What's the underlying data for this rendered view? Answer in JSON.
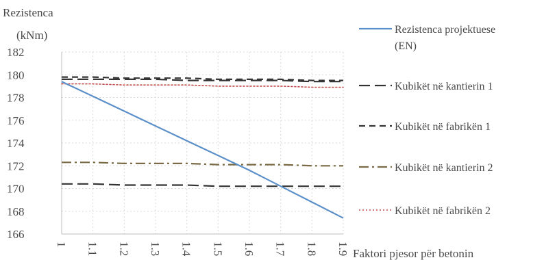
{
  "chart_data": {
    "type": "line",
    "ylabel_line1": "Rezistenca",
    "ylabel_line2": "(kNm)",
    "xlabel": "Faktori pjesor për betonin",
    "x": [
      1,
      1.1,
      1.2,
      1.3,
      1.4,
      1.5,
      1.6,
      1.7,
      1.8,
      1.9
    ],
    "x_tick_labels": [
      "1",
      "1.1",
      "1.2",
      "1.3",
      "1.4",
      "1.5",
      "1.6",
      "1.7",
      "1.8",
      "1.9"
    ],
    "ylim": [
      166,
      182
    ],
    "y_ticks": [
      166,
      168,
      170,
      172,
      174,
      176,
      178,
      180,
      182
    ],
    "grid": true,
    "legend_position": "right",
    "series": [
      {
        "name": "Rezistenca projektuese (EN)",
        "name_lines": [
          "Rezistenca projektuese",
          "(EN)"
        ],
        "style": "solid",
        "color": "#5b8fc9",
        "values": [
          179.4,
          178.1,
          176.8,
          175.5,
          174.2,
          172.9,
          171.6,
          170.2,
          168.8,
          167.4
        ]
      },
      {
        "name": "Kubikët në kantierin 1",
        "name_lines": [
          "Kubikët në kantierin 1"
        ],
        "style": "longdash",
        "color": "#333333",
        "values": [
          179.6,
          179.6,
          179.6,
          179.6,
          179.5,
          179.5,
          179.5,
          179.5,
          179.4,
          179.4
        ]
      },
      {
        "name": "Kubikët në fabrikën 1",
        "name_lines": [
          "Kubikët në fabrikën 1"
        ],
        "style": "dash",
        "color": "#333333",
        "values": [
          179.8,
          179.8,
          179.7,
          179.7,
          179.7,
          179.6,
          179.6,
          179.6,
          179.5,
          179.5
        ]
      },
      {
        "name": "Kubikët në kantierin 2",
        "name_lines": [
          "Kubikët në kantierin 2"
        ],
        "style": "dashdot",
        "color": "#7a6a45",
        "values": [
          172.3,
          172.3,
          172.2,
          172.2,
          172.2,
          172.1,
          172.1,
          172.1,
          172.0,
          172.0
        ]
      },
      {
        "name": "Kubikët në fabrikën 2",
        "name_lines": [
          "Kubikët në fabrikën 2"
        ],
        "style": "dotted",
        "color": "#c24a4a",
        "values": [
          179.2,
          179.2,
          179.1,
          179.1,
          179.1,
          179.0,
          179.0,
          179.0,
          178.9,
          178.9
        ]
      },
      {
        "name": "",
        "name_lines": [],
        "style": "longdash",
        "color": "#333333",
        "values": [
          170.4,
          170.4,
          170.3,
          170.3,
          170.3,
          170.2,
          170.2,
          170.2,
          170.2,
          170.2
        ]
      }
    ]
  }
}
